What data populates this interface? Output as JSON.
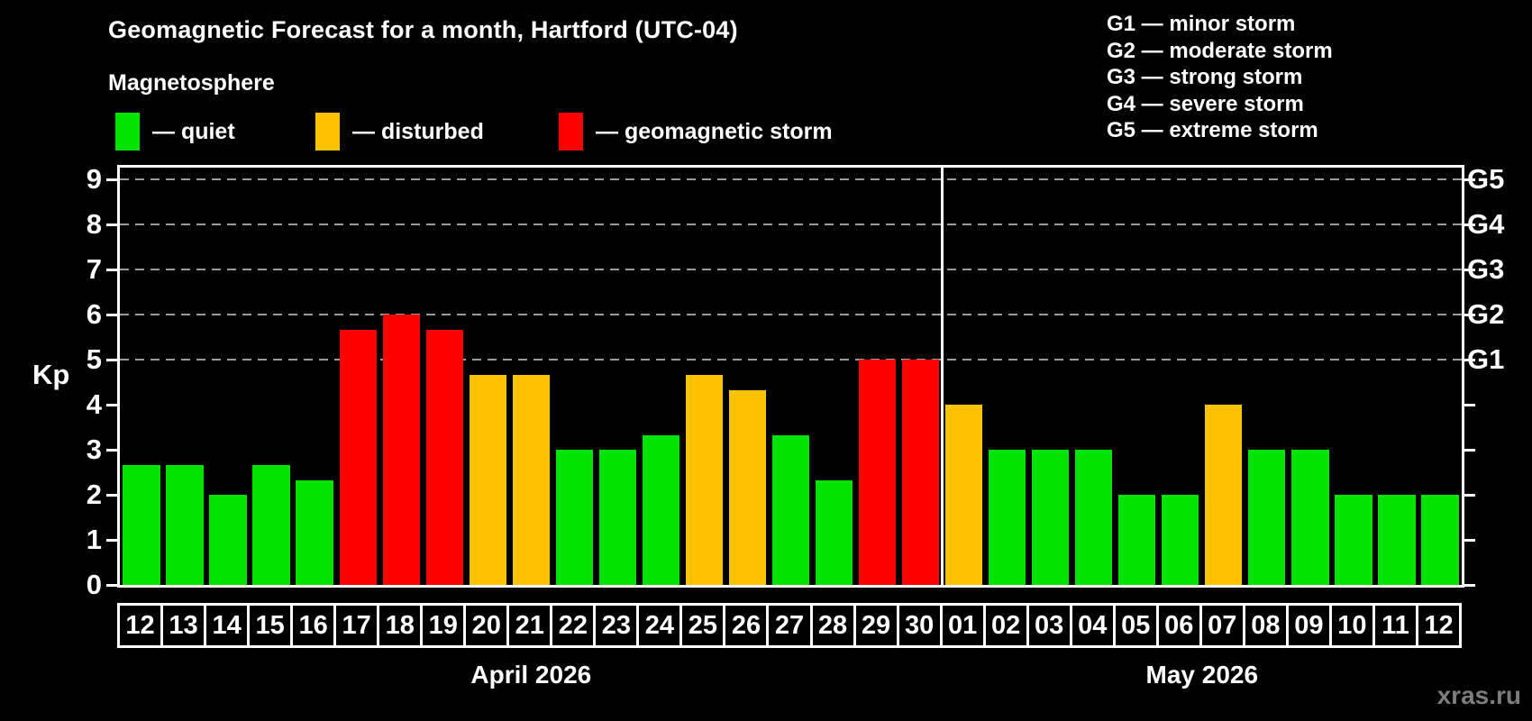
{
  "title": "Geomagnetic Forecast for a month, Hartford (UTC-04)",
  "subtitle": "Magnetosphere",
  "legend": [
    {
      "key": "quiet",
      "label": "— quiet",
      "color": "#00e400"
    },
    {
      "key": "disturbed",
      "label": "— disturbed",
      "color": "#ffc200"
    },
    {
      "key": "storm",
      "label": "— geomagnetic storm",
      "color": "#ff0000"
    }
  ],
  "g_scale_legend": [
    "G1 — minor storm",
    "G2 — moderate storm",
    "G3 — strong storm",
    "G4 — severe storm",
    "G5 — extreme storm"
  ],
  "watermark": "xras.ru",
  "chart_data": {
    "type": "bar",
    "title": "Geomagnetic Forecast for a month, Hartford (UTC-04)",
    "ylabel": "Kp",
    "ylim": [
      0,
      9.4
    ],
    "y_ticks": [
      0,
      1,
      2,
      3,
      4,
      5,
      6,
      7,
      8,
      9
    ],
    "gridlines_at_kp": [
      5,
      6,
      7,
      8,
      9
    ],
    "grid": "dashed-horizontal",
    "legend_position": "top",
    "right_axis_labels": [
      {
        "kp": 5,
        "label": "G1"
      },
      {
        "kp": 6,
        "label": "G2"
      },
      {
        "kp": 7,
        "label": "G3"
      },
      {
        "kp": 8,
        "label": "G4"
      },
      {
        "kp": 9,
        "label": "G5"
      }
    ],
    "status_colors": {
      "quiet": "#00e400",
      "disturbed": "#ffc200",
      "storm": "#ff0000"
    },
    "months": [
      {
        "label": "April 2026",
        "days": [
          {
            "day": "12",
            "kp": 2.67,
            "status": "quiet"
          },
          {
            "day": "13",
            "kp": 2.67,
            "status": "quiet"
          },
          {
            "day": "14",
            "kp": 2.0,
            "status": "quiet"
          },
          {
            "day": "15",
            "kp": 2.67,
            "status": "quiet"
          },
          {
            "day": "16",
            "kp": 2.33,
            "status": "quiet"
          },
          {
            "day": "17",
            "kp": 5.67,
            "status": "storm"
          },
          {
            "day": "18",
            "kp": 6.0,
            "status": "storm"
          },
          {
            "day": "19",
            "kp": 5.67,
            "status": "storm"
          },
          {
            "day": "20",
            "kp": 4.67,
            "status": "disturbed"
          },
          {
            "day": "21",
            "kp": 4.67,
            "status": "disturbed"
          },
          {
            "day": "22",
            "kp": 3.0,
            "status": "quiet"
          },
          {
            "day": "23",
            "kp": 3.0,
            "status": "quiet"
          },
          {
            "day": "24",
            "kp": 3.33,
            "status": "quiet"
          },
          {
            "day": "25",
            "kp": 4.67,
            "status": "disturbed"
          },
          {
            "day": "26",
            "kp": 4.33,
            "status": "disturbed"
          },
          {
            "day": "27",
            "kp": 3.33,
            "status": "quiet"
          },
          {
            "day": "28",
            "kp": 2.33,
            "status": "quiet"
          },
          {
            "day": "29",
            "kp": 5.0,
            "status": "storm"
          },
          {
            "day": "30",
            "kp": 5.0,
            "status": "storm"
          }
        ]
      },
      {
        "label": "May 2026",
        "days": [
          {
            "day": "01",
            "kp": 4.0,
            "status": "disturbed"
          },
          {
            "day": "02",
            "kp": 3.0,
            "status": "quiet"
          },
          {
            "day": "03",
            "kp": 3.0,
            "status": "quiet"
          },
          {
            "day": "04",
            "kp": 3.0,
            "status": "quiet"
          },
          {
            "day": "05",
            "kp": 2.0,
            "status": "quiet"
          },
          {
            "day": "06",
            "kp": 2.0,
            "status": "quiet"
          },
          {
            "day": "07",
            "kp": 4.0,
            "status": "disturbed"
          },
          {
            "day": "08",
            "kp": 3.0,
            "status": "quiet"
          },
          {
            "day": "09",
            "kp": 3.0,
            "status": "quiet"
          },
          {
            "day": "10",
            "kp": 2.0,
            "status": "quiet"
          },
          {
            "day": "11",
            "kp": 2.0,
            "status": "quiet"
          },
          {
            "day": "12",
            "kp": 2.0,
            "status": "quiet"
          }
        ]
      }
    ]
  }
}
